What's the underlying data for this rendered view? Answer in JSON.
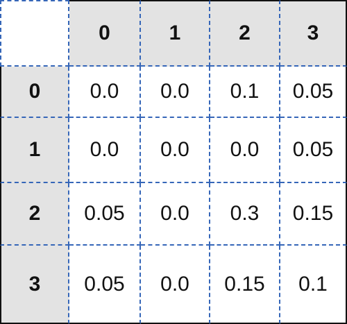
{
  "table": {
    "column_headers": [
      "0",
      "1",
      "2",
      "3"
    ],
    "row_headers": [
      "0",
      "1",
      "2",
      "3"
    ],
    "rows": [
      [
        "0.0",
        "0.0",
        "0.1",
        "0.05"
      ],
      [
        "0.0",
        "0.0",
        "0.0",
        "0.05"
      ],
      [
        "0.05",
        "0.0",
        "0.3",
        "0.15"
      ],
      [
        "0.05",
        "0.0",
        "0.15",
        "0.1"
      ]
    ]
  },
  "colors": {
    "header_fill": "#e3e3e3",
    "grid_line": "#3566b8",
    "outer_border": "#111111"
  }
}
